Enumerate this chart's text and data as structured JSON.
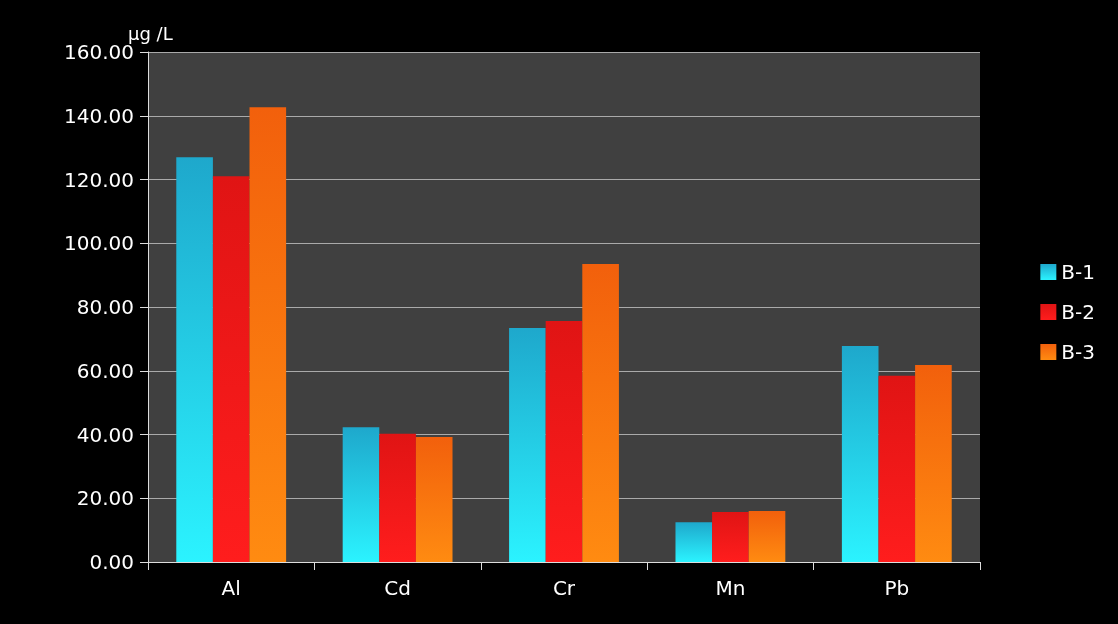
{
  "chart_data": {
    "type": "bar",
    "ylabel": "µg /L",
    "categories": [
      "Al",
      "Cd",
      "Cr",
      "Mn",
      "Pb"
    ],
    "series": [
      {
        "name": "B-1",
        "color": "#1ea8cc",
        "values": [
          127,
          42.3,
          73.4,
          12.5,
          67.8
        ]
      },
      {
        "name": "B-2",
        "color": "#e01414",
        "values": [
          121,
          40.2,
          75.6,
          15.7,
          58.4
        ]
      },
      {
        "name": "B-3",
        "color": "#f2600c",
        "values": [
          142.7,
          39.2,
          93.5,
          16,
          61.8
        ]
      }
    ],
    "ylim": [
      0,
      160
    ],
    "yticks": [
      {
        "value": 0,
        "label": "0.00"
      },
      {
        "value": 20,
        "label": "20.00"
      },
      {
        "value": 40,
        "label": "40.00"
      },
      {
        "value": 60,
        "label": "60.00"
      },
      {
        "value": 80,
        "label": "80.00"
      },
      {
        "value": 100,
        "label": "100.00"
      },
      {
        "value": 120,
        "label": "120.00"
      },
      {
        "value": 140,
        "label": "140.00"
      },
      {
        "value": 160,
        "label": "160.00"
      }
    ],
    "grid": "y",
    "legend": "right"
  }
}
